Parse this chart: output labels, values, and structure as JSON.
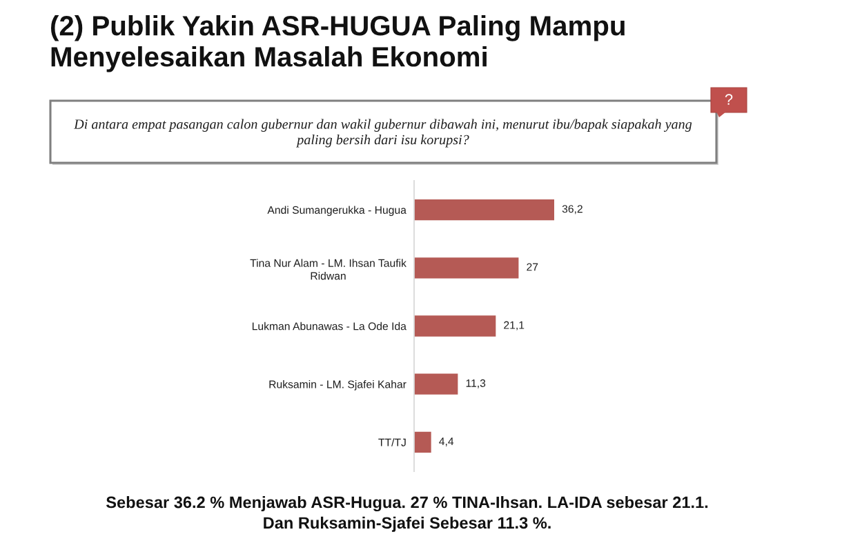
{
  "chart_data": {
    "type": "bar",
    "orientation": "horizontal",
    "title": "(2) Publik Yakin ASR-HUGUA Paling Mampu\nMenyelesaikan Masalah Ekonomi",
    "subtitle": "Di antara empat pasangan calon gubernur dan wakil gubernur dibawah ini, menurut ibu/bapak siapakah yang\npaling bersih dari isu korupsi?",
    "categories": [
      "Andi Sumangerukka - Hugua",
      "Tina Nur Alam - LM. Ihsan Taufik\nRidwan",
      "Lukman Abunawas - La Ode Ida",
      "Ruksamin - LM. Sjafei Kahar",
      "TT/TJ"
    ],
    "values": [
      36.2,
      27,
      21.1,
      11.3,
      4.4
    ],
    "color": "#b55a55",
    "value_labels": [
      "36,2",
      "27",
      "21,1",
      "11,3",
      "4,4"
    ],
    "tick_labels": "y",
    "annotations": [
      "Sebesar 36.2 % Menjawab ASR-Hugua. 27 % TINA-Ihsan. LA-IDA sebesar 21.1.\nDan Ruksamin-Sjafei Sebesar 11.3 %.",
      "?"
    ]
  }
}
